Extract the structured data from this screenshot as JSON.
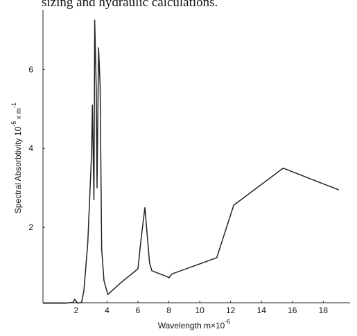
{
  "context_text": "sizing and hydraulic calculations.",
  "chart_data": {
    "type": "line",
    "xlabel": "Wavelength m×10",
    "xlabel_sup": "-6",
    "ylabel": "Spectral Absorbtivity 10",
    "ylabel_sup": "-5",
    "ylabel_mid": " x  m",
    "ylabel_sup2": "-1",
    "x": [
      -0.15,
      1.3,
      1.8,
      1.9,
      2.1,
      2.35,
      2.5,
      2.75,
      3.0,
      3.05,
      3.15,
      3.2,
      3.3,
      3.35,
      3.45,
      3.55,
      3.65,
      3.8,
      4.05,
      4.9,
      6.0,
      6.2,
      6.45,
      6.75,
      6.9,
      7.9,
      8.0,
      8.2,
      11.1,
      12.2,
      15.4,
      19.0
    ],
    "series": [
      {
        "color": "#222222",
        "values": [
          0.08,
          0.08,
          0.1,
          0.18,
          0.08,
          0.1,
          0.4,
          1.6,
          3.9,
          5.1,
          2.7,
          7.25,
          5.5,
          3.0,
          6.55,
          5.6,
          1.45,
          0.65,
          0.3,
          0.6,
          0.95,
          1.7,
          2.5,
          1.1,
          0.9,
          0.75,
          0.72,
          0.82,
          1.23,
          2.56,
          3.5,
          2.95
        ]
      }
    ],
    "xlim": [
      -0.15,
      19.6
    ],
    "ylim": [
      0.09,
      7.55
    ],
    "xticks": [
      2,
      4,
      6,
      8,
      10,
      12,
      14,
      16,
      18
    ],
    "yticks": [
      2,
      4,
      6
    ]
  }
}
